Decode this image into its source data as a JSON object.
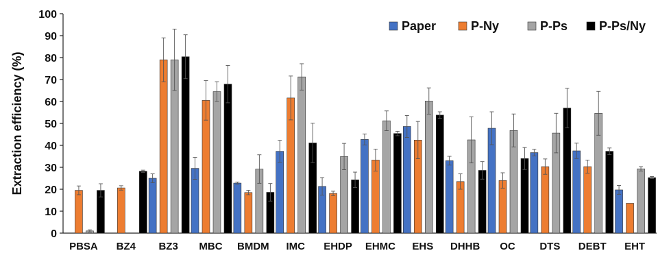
{
  "chart_data": {
    "type": "bar",
    "ylabel": "Extraction efficiency (%)",
    "ylim": [
      0,
      100
    ],
    "yticks": [
      0,
      10,
      20,
      30,
      40,
      50,
      60,
      70,
      80,
      90,
      100
    ],
    "grid": false,
    "legend_position": "top-right",
    "categories": [
      "PBSA",
      "BZ4",
      "BZ3",
      "MBC",
      "BMDM",
      "IMC",
      "EHDP",
      "EHMC",
      "EHS",
      "DHHB",
      "OC",
      "DTS",
      "DEBT",
      "EHT"
    ],
    "series": [
      {
        "name": "Paper",
        "color": "#4472C4",
        "values": [
          null,
          null,
          25,
          29.5,
          22.8,
          37.3,
          21.3,
          42.7,
          48.6,
          33,
          47.8,
          36.7,
          37.5,
          19.7
        ],
        "errors": [
          null,
          null,
          2,
          5,
          0.5,
          5,
          4,
          2.5,
          5,
          2,
          7.5,
          1.5,
          3.5,
          2
        ]
      },
      {
        "name": "P-Ny",
        "color": "#ED7D31",
        "values": [
          19.5,
          20.6,
          79,
          60.5,
          18.5,
          61.6,
          18.1,
          33.3,
          42.4,
          23.5,
          24,
          30.3,
          30.3,
          13.6
        ],
        "errors": [
          2,
          1,
          10,
          9,
          1,
          10,
          1,
          5,
          8.5,
          3.5,
          3.5,
          3.5,
          3,
          0
        ]
      },
      {
        "name": "P-Ps",
        "color": "#A5A5A5",
        "values": [
          1,
          null,
          79,
          64.5,
          29.2,
          71.2,
          34.9,
          51.2,
          60.2,
          42.5,
          46.8,
          45.6,
          54.6,
          29.3
        ],
        "errors": [
          0.5,
          null,
          14,
          4.5,
          6.5,
          6,
          6,
          4.5,
          6,
          10.5,
          7.5,
          9,
          10,
          1
        ]
      },
      {
        "name": "P-Ps/Ny",
        "color": "#000000",
        "values": [
          19.5,
          28.2,
          80.4,
          67.9,
          18.6,
          41.1,
          24.3,
          45.4,
          53.8,
          28.6,
          34,
          57,
          37.3,
          25.3
        ],
        "errors": [
          3,
          0.5,
          10,
          8.5,
          4,
          9,
          3.5,
          1,
          1.5,
          4,
          5,
          9,
          1.5,
          0.5
        ]
      }
    ]
  }
}
